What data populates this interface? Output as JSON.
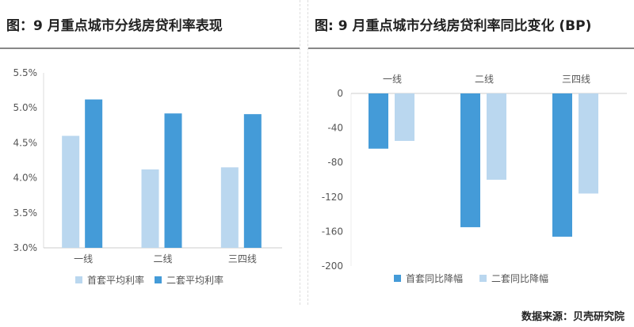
{
  "chart_data": [
    {
      "type": "bar",
      "title": "图：9 月重点城市分线房贷利率表现",
      "categories": [
        "一线",
        "二线",
        "三四线"
      ],
      "series": [
        {
          "name": "首套平均利率",
          "values": [
            4.6,
            4.12,
            4.15
          ],
          "color": "#bad7ef"
        },
        {
          "name": "二套平均利率",
          "values": [
            5.12,
            4.92,
            4.91
          ],
          "color": "#449bd8"
        }
      ],
      "yticks": [
        "3.0%",
        "3.5%",
        "4.0%",
        "4.5%",
        "5.0%",
        "5.5%"
      ],
      "ylim": [
        3.0,
        5.5
      ],
      "legend": "bottom",
      "grid": false
    },
    {
      "type": "bar",
      "title": "图: 9 月重点城市分线房贷利率同比变化 (BP)",
      "categories": [
        "一线",
        "二线",
        "三四线"
      ],
      "series": [
        {
          "name": "首套同比降幅",
          "values": [
            -64,
            -155,
            -166
          ],
          "color": "#449bd8"
        },
        {
          "name": "二套同比降幅",
          "values": [
            -55,
            -100,
            -116
          ],
          "color": "#bad7ef"
        }
      ],
      "yticks": [
        "0",
        "-40",
        "-80",
        "-120",
        "-160",
        "-200"
      ],
      "ylim": [
        -200,
        0
      ],
      "legend": "bottom",
      "grid": false
    }
  ],
  "source": "数据来源：贝壳研究院"
}
